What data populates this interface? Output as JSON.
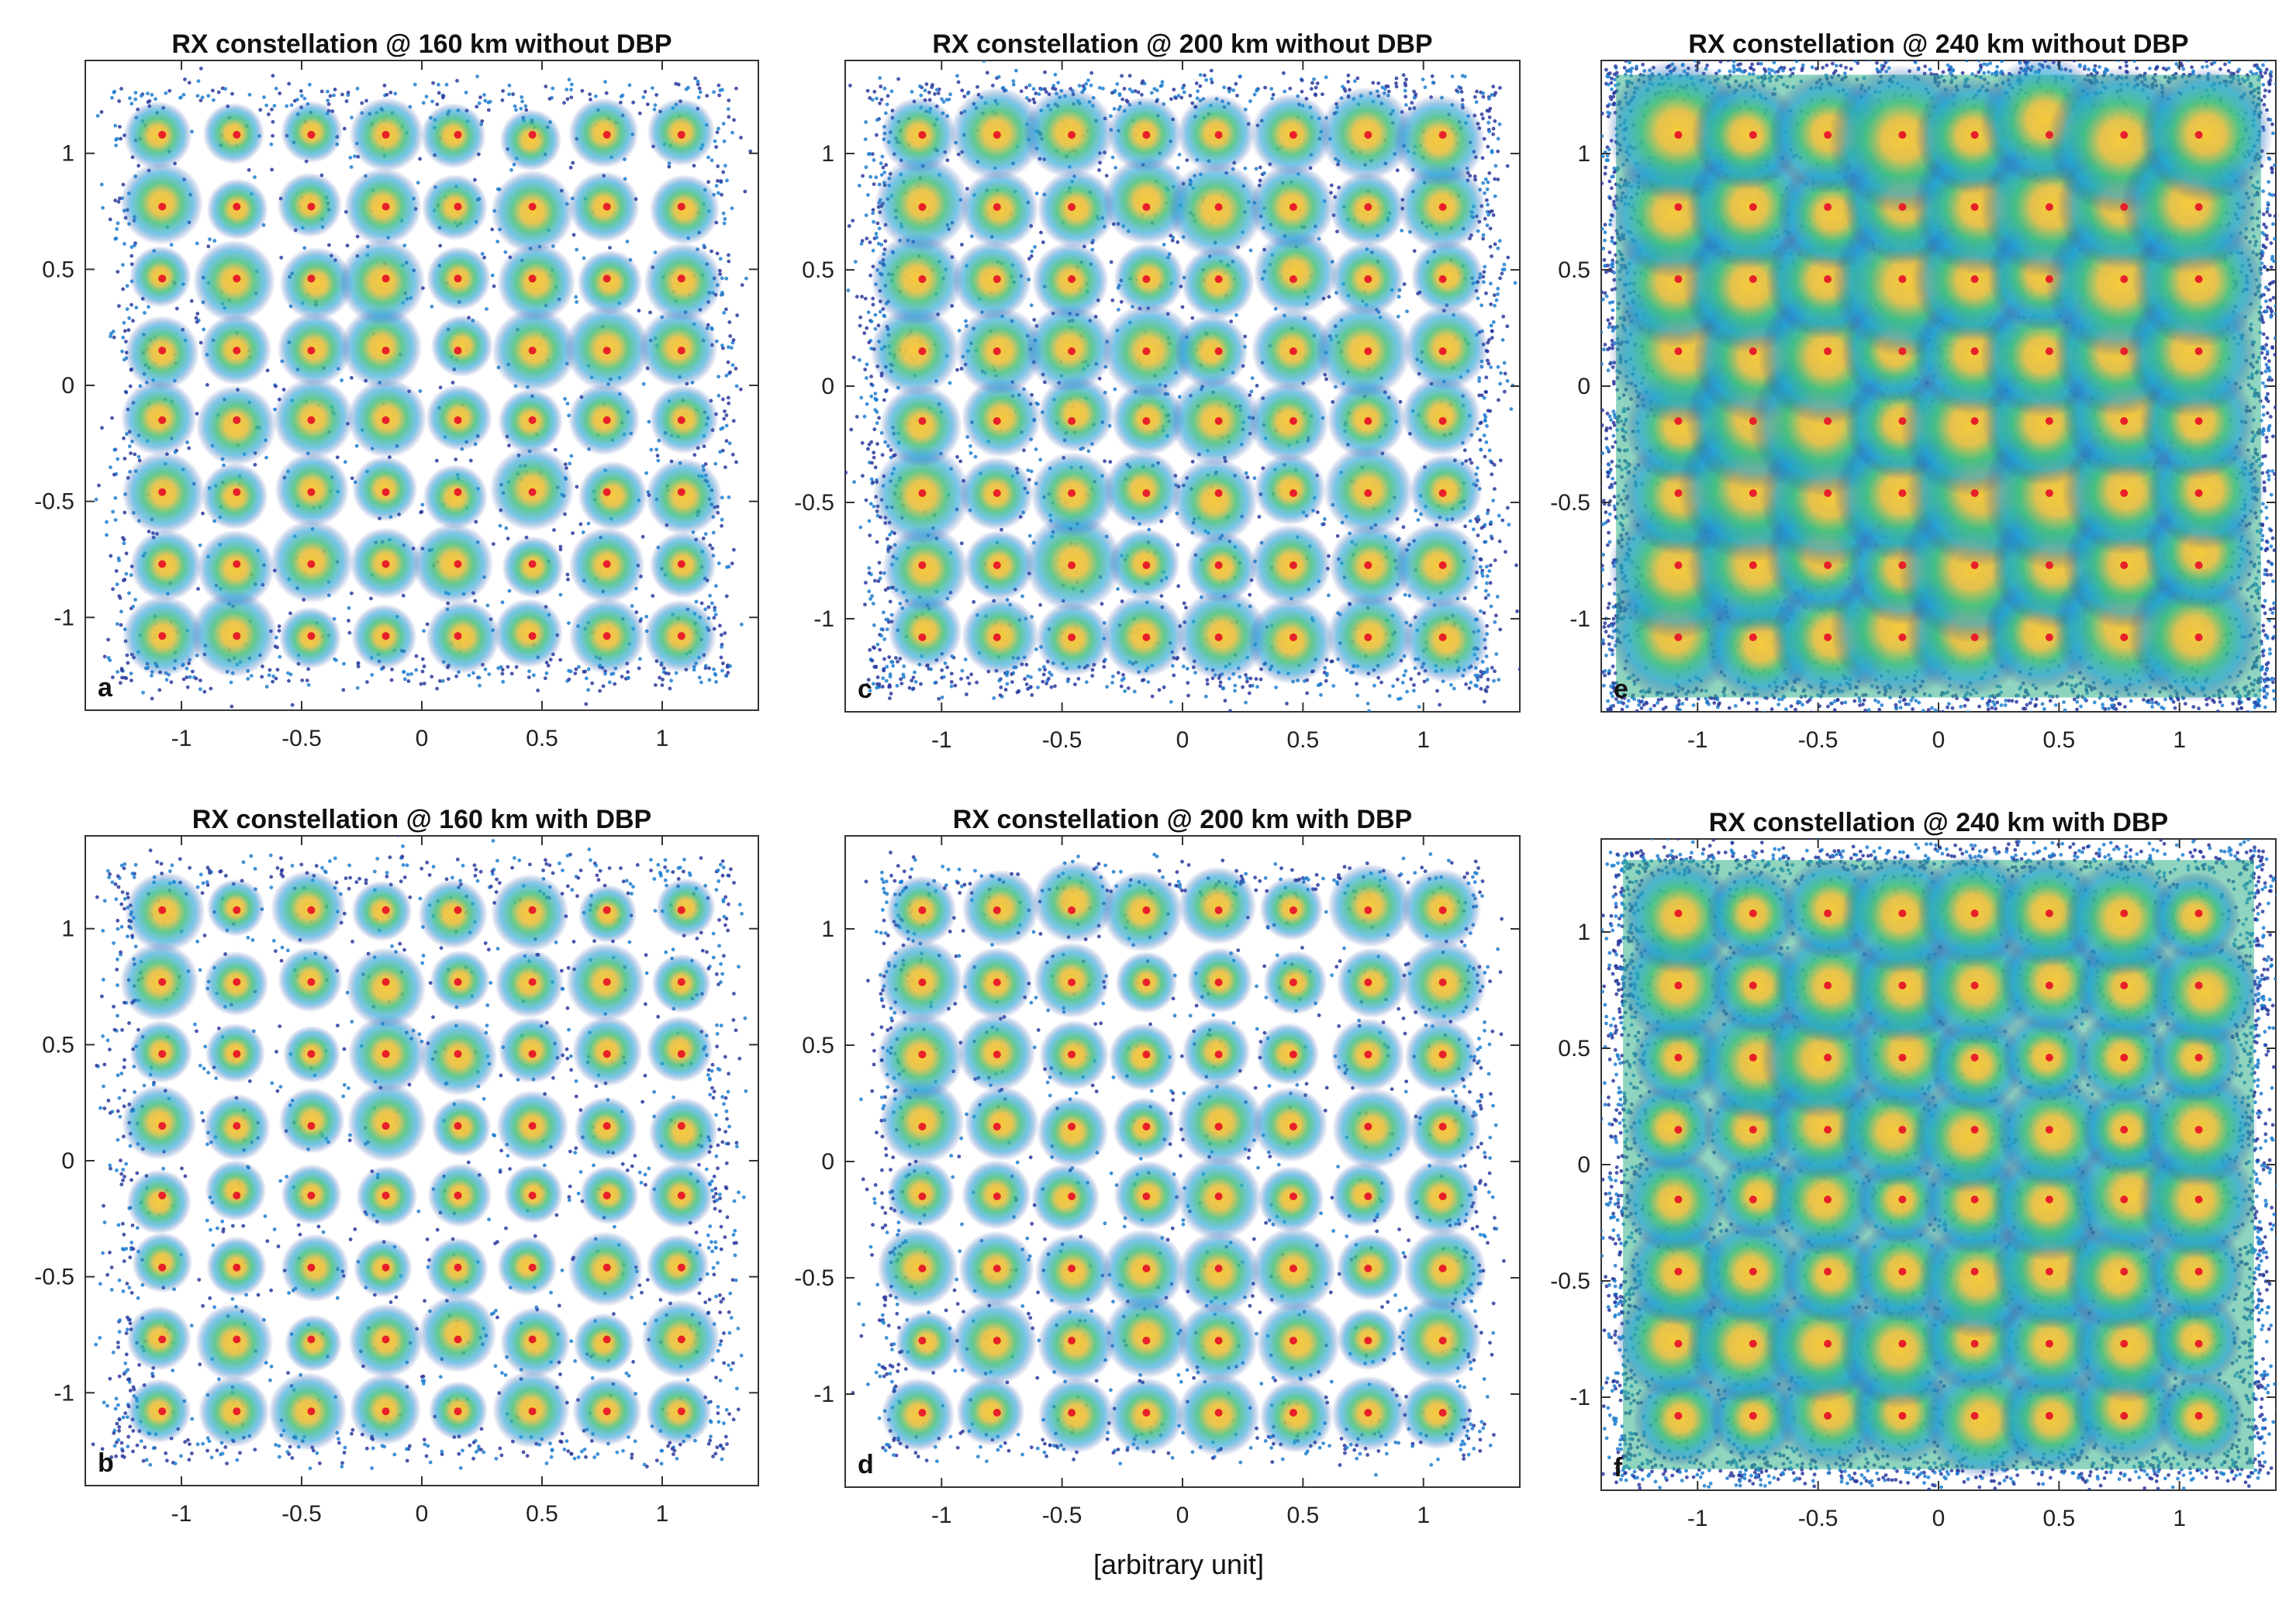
{
  "figure": {
    "shared_xlabel": "[arbitrary unit]"
  },
  "colors": {
    "symbol_marker": "#e8202a",
    "cloud_low": "#2b3a9e",
    "cloud_mid": "#1f9bd6",
    "cloud_high": "#3fbf7f",
    "cloud_peak": "#f5c33a"
  },
  "chart_data": [
    {
      "panel": "a",
      "type": "scatter",
      "title": "RX constellation @ 160 km without DBP",
      "xlabel": "",
      "ylabel": "",
      "xlim": [
        -1.4,
        1.4
      ],
      "ylim": [
        -1.4,
        1.4
      ],
      "xticks": [
        -1,
        -0.5,
        0,
        0.5,
        1
      ],
      "xtick_labels": [
        "-1",
        "-0.5",
        "0",
        "0.5",
        "1"
      ],
      "yticks": [
        1,
        0.5,
        0,
        -0.5,
        -1
      ],
      "ytick_labels": [
        "1",
        "0.5",
        "0",
        "-0.5",
        "-1"
      ],
      "constellation": "64-QAM",
      "levels": [
        -1.08,
        -0.77,
        -0.46,
        -0.15,
        0.15,
        0.46,
        0.77,
        1.08
      ],
      "cloud_spread": 0.075,
      "cloud_extent": 1.28,
      "background_noise": "low",
      "grid": false
    },
    {
      "panel": "b",
      "type": "scatter",
      "title": "RX constellation @ 160 km with DBP",
      "xlabel": "",
      "ylabel": "",
      "xlim": [
        -1.4,
        1.4
      ],
      "ylim": [
        -1.4,
        1.4
      ],
      "xticks": [
        -1,
        -0.5,
        0,
        0.5,
        1
      ],
      "xtick_labels": [
        "-1",
        "-0.5",
        "0",
        "0.5",
        "1"
      ],
      "yticks": [
        1,
        0.5,
        0,
        -0.5,
        -1
      ],
      "ytick_labels": [
        "1",
        "0.5",
        "0",
        "-0.5",
        "-1"
      ],
      "constellation": "64-QAM",
      "levels": [
        -1.08,
        -0.77,
        -0.46,
        -0.15,
        0.15,
        0.46,
        0.77,
        1.08
      ],
      "cloud_spread": 0.07,
      "cloud_extent": 1.28,
      "background_noise": "low",
      "grid": false
    },
    {
      "panel": "c",
      "type": "scatter",
      "title": "RX constellation @ 200 km without DBP",
      "xlabel": "",
      "ylabel": "",
      "xlim": [
        -1.4,
        1.4
      ],
      "ylim": [
        -1.4,
        1.4
      ],
      "xticks": [
        -1,
        -0.5,
        0,
        0.5,
        1
      ],
      "xtick_labels": [
        "-1",
        "-0.5",
        "0",
        "0.5",
        "1"
      ],
      "yticks": [
        1,
        0.5,
        0,
        -0.5,
        -1
      ],
      "ytick_labels": [
        "1",
        "0.5",
        "0",
        "-0.5",
        "-1"
      ],
      "constellation": "64-QAM",
      "levels": [
        -1.08,
        -0.77,
        -0.46,
        -0.15,
        0.15,
        0.46,
        0.77,
        1.08
      ],
      "cloud_spread": 0.085,
      "cloud_extent": 1.3,
      "background_noise": "medium",
      "grid": false
    },
    {
      "panel": "d",
      "type": "scatter",
      "title": "RX constellation @ 200 km with DBP",
      "xlabel": "",
      "ylabel": "",
      "xlim": [
        -1.4,
        1.4
      ],
      "ylim": [
        -1.4,
        1.4
      ],
      "xticks": [
        -1,
        -0.5,
        0,
        0.5,
        1
      ],
      "xtick_labels": [
        "-1",
        "-0.5",
        "0",
        "0.5",
        "1"
      ],
      "yticks": [
        1,
        0.5,
        0,
        -0.5,
        -1
      ],
      "ytick_labels": [
        "1",
        "0.5",
        "0",
        "-0.5",
        "-1"
      ],
      "constellation": "64-QAM",
      "levels": [
        -1.08,
        -0.77,
        -0.46,
        -0.15,
        0.15,
        0.46,
        0.77,
        1.08
      ],
      "cloud_spread": 0.075,
      "cloud_extent": 1.25,
      "background_noise": "low",
      "grid": false
    },
    {
      "panel": "e",
      "type": "scatter",
      "title": "RX constellation @ 240 km without DBP",
      "xlabel": "",
      "ylabel": "",
      "xlim": [
        -1.4,
        1.4
      ],
      "ylim": [
        -1.4,
        1.4
      ],
      "xticks": [
        -1,
        -0.5,
        0,
        0.5,
        1
      ],
      "xtick_labels": [
        "-1",
        "-0.5",
        "0",
        "0.5",
        "1"
      ],
      "yticks": [
        1,
        0.5,
        0,
        -0.5,
        -1
      ],
      "ytick_labels": [
        "1",
        "0.5",
        "0",
        "-0.5",
        "-1"
      ],
      "constellation": "64-QAM",
      "levels": [
        -1.08,
        -0.77,
        -0.46,
        -0.15,
        0.15,
        0.46,
        0.77,
        1.08
      ],
      "cloud_spread": 0.13,
      "cloud_extent": 1.38,
      "background_noise": "high",
      "grid": false
    },
    {
      "panel": "f",
      "type": "scatter",
      "title": "RX constellation @ 240 km with DBP",
      "xlabel": "",
      "ylabel": "",
      "xlim": [
        -1.4,
        1.4
      ],
      "ylim": [
        -1.4,
        1.4
      ],
      "xticks": [
        -1,
        -0.5,
        0,
        0.5,
        1
      ],
      "xtick_labels": [
        "-1",
        "-0.5",
        "0",
        "0.5",
        "1"
      ],
      "yticks": [
        1,
        0.5,
        0,
        -0.5,
        -1
      ],
      "ytick_labels": [
        "1",
        "0.5",
        "0",
        "-0.5",
        "-1"
      ],
      "constellation": "64-QAM",
      "levels": [
        -1.08,
        -0.77,
        -0.46,
        -0.15,
        0.15,
        0.46,
        0.77,
        1.08
      ],
      "cloud_spread": 0.105,
      "cloud_extent": 1.35,
      "background_noise": "high",
      "grid": false
    }
  ]
}
